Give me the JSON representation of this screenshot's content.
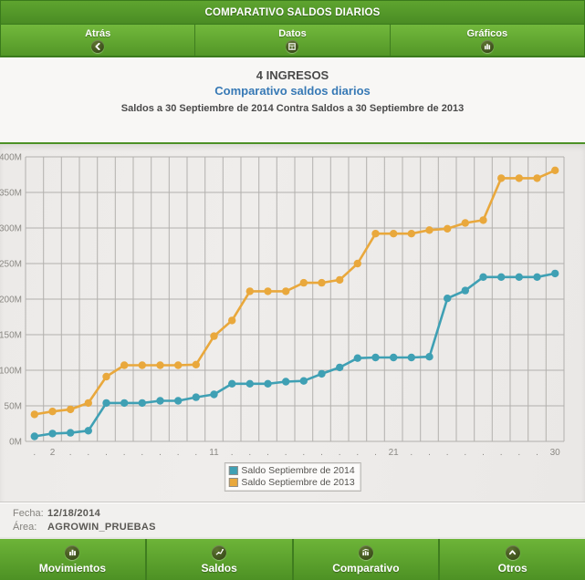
{
  "titlebar": {
    "title": "COMPARATIVO SALDOS DIARIOS"
  },
  "toolbar": {
    "buttons": [
      {
        "label": "Atrás",
        "icon": "chevron-left-icon"
      },
      {
        "label": "Datos",
        "icon": "table-icon"
      },
      {
        "label": "Gráficos",
        "icon": "bar-chart-icon"
      }
    ]
  },
  "report_header": {
    "title": "4 INGRESOS",
    "subtitle": "Comparativo saldos diarios",
    "description": "Saldos a 30 Septiembre de 2014 Contra Saldos a 30 Septiembre de 2013"
  },
  "chart_data": {
    "type": "line",
    "title": "",
    "xlabel": "",
    "ylabel": "",
    "x_days": [
      1,
      2,
      3,
      4,
      5,
      6,
      7,
      8,
      9,
      10,
      11,
      12,
      13,
      14,
      15,
      16,
      17,
      18,
      19,
      20,
      21,
      22,
      23,
      24,
      25,
      26,
      27,
      28,
      29,
      30
    ],
    "x_labels": [
      ".",
      "2",
      ".",
      ".",
      ".",
      ".",
      ".",
      ".",
      ".",
      ".",
      "11",
      ".",
      ".",
      ".",
      ".",
      ".",
      ".",
      ".",
      ".",
      ".",
      "21",
      ".",
      ".",
      ".",
      ".",
      ".",
      ".",
      ".",
      ".",
      "30"
    ],
    "unit": "millions",
    "ylim": [
      0,
      400
    ],
    "ytick_step": 50,
    "ytick_suffix": "M",
    "grid": true,
    "legend_position": "bottom-center",
    "series": [
      {
        "name": "Saldo Septiembre de 2014",
        "color": "#3fa0b4",
        "values": [
          7,
          11,
          12,
          15,
          54,
          54,
          54,
          57,
          57,
          62,
          66,
          81,
          81,
          81,
          84,
          85,
          95,
          104,
          117,
          118,
          118,
          118,
          119,
          201,
          212,
          231,
          231,
          231,
          231,
          236
        ]
      },
      {
        "name": "Saldo Septiembre de 2013",
        "color": "#e9a83c",
        "values": [
          38,
          42,
          45,
          54,
          91,
          107,
          107,
          107,
          107,
          108,
          148,
          170,
          211,
          211,
          211,
          223,
          223,
          227,
          250,
          292,
          292,
          292,
          297,
          299,
          307,
          311,
          370,
          370,
          370,
          381
        ]
      }
    ]
  },
  "footer": {
    "fecha_label": "Fecha:",
    "fecha_value": "12/18/2014",
    "area_label": "Área:",
    "area_value": "AGROWIN_PRUEBAS"
  },
  "bottom_nav": {
    "items": [
      {
        "label": "Movimientos",
        "icon": "bar-chart-icon"
      },
      {
        "label": "Saldos",
        "icon": "line-chart-icon"
      },
      {
        "label": "Comparativo",
        "icon": "combo-chart-icon"
      },
      {
        "label": "Otros",
        "icon": "chevron-up-icon"
      }
    ]
  },
  "colors": {
    "accent_green": "#4c9126",
    "series_2014": "#3fa0b4",
    "series_2013": "#e9a83c",
    "chart_background": "#edecea",
    "gridline": "#b2b0ad"
  }
}
